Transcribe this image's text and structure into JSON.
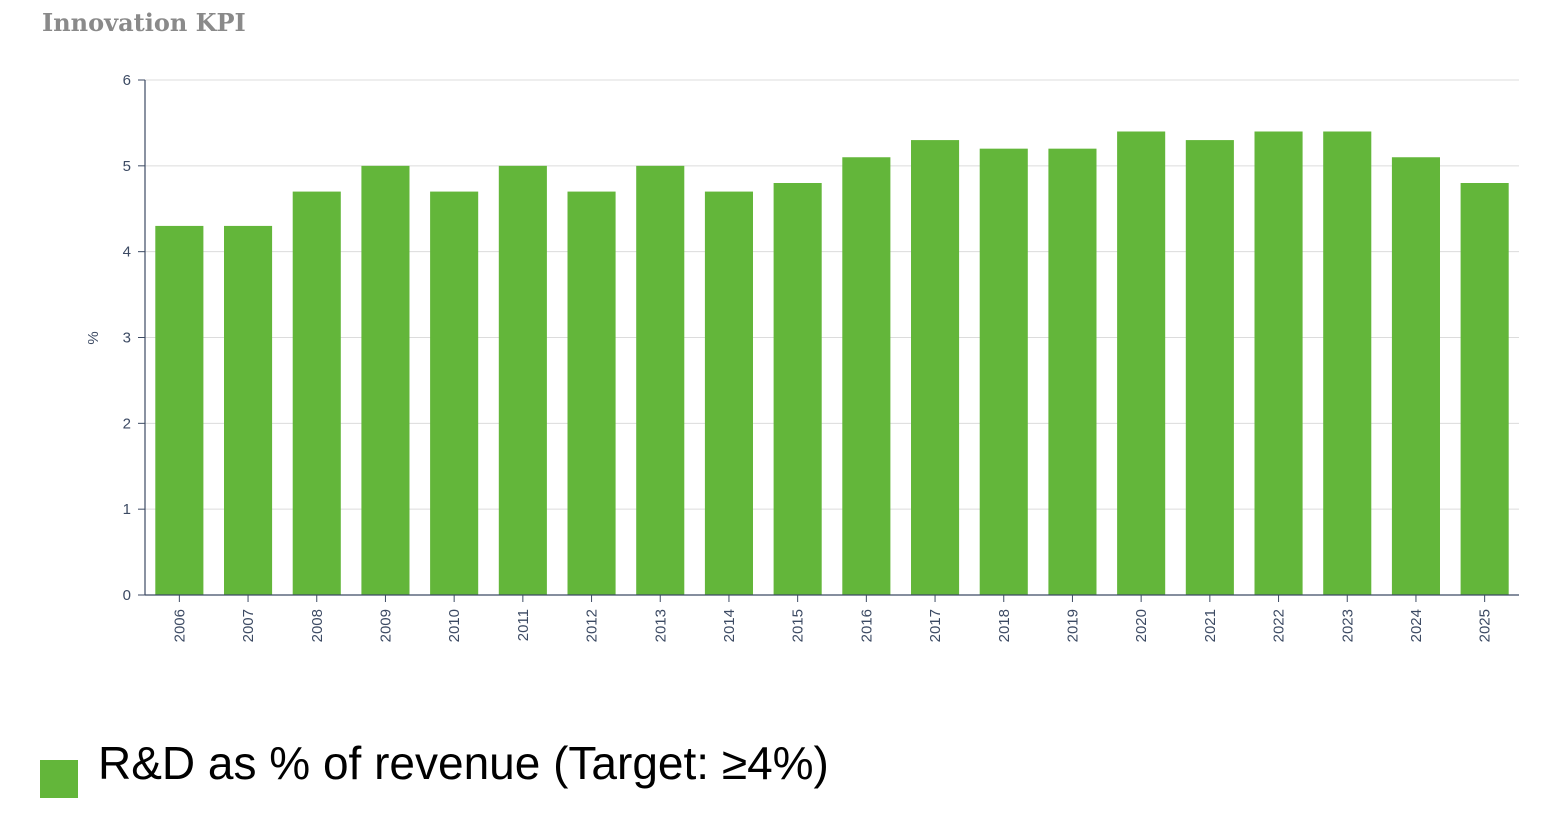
{
  "title": "Innovation KPI",
  "legend": {
    "label": "R&D as % of revenue (Target: ≥4%)"
  },
  "colors": {
    "bar": "#63b63a",
    "grid": "#dcdcdc",
    "axis": "#3c4a63",
    "title": "#8a8a8a"
  },
  "chart_data": {
    "type": "bar",
    "title": "Innovation KPI",
    "xlabel": "",
    "ylabel": "%",
    "ylim": [
      0,
      6
    ],
    "yticks": [
      0,
      1,
      2,
      3,
      4,
      5,
      6
    ],
    "grid": true,
    "legend_position": "bottom-left",
    "categories": [
      "2006",
      "2007",
      "2008",
      "2009",
      "2010",
      "2011",
      "2012",
      "2013",
      "2014",
      "2015",
      "2016",
      "2017",
      "2018",
      "2019",
      "2020",
      "2021",
      "2022",
      "2023",
      "2024",
      "2025"
    ],
    "series": [
      {
        "name": "R&D as % of revenue (Target: ≥4%)",
        "values": [
          4.3,
          4.3,
          4.7,
          5.0,
          4.7,
          5.0,
          4.7,
          5.0,
          4.7,
          4.8,
          5.1,
          5.3,
          5.2,
          5.2,
          5.4,
          5.3,
          5.4,
          5.4,
          5.1,
          4.8
        ]
      }
    ]
  }
}
